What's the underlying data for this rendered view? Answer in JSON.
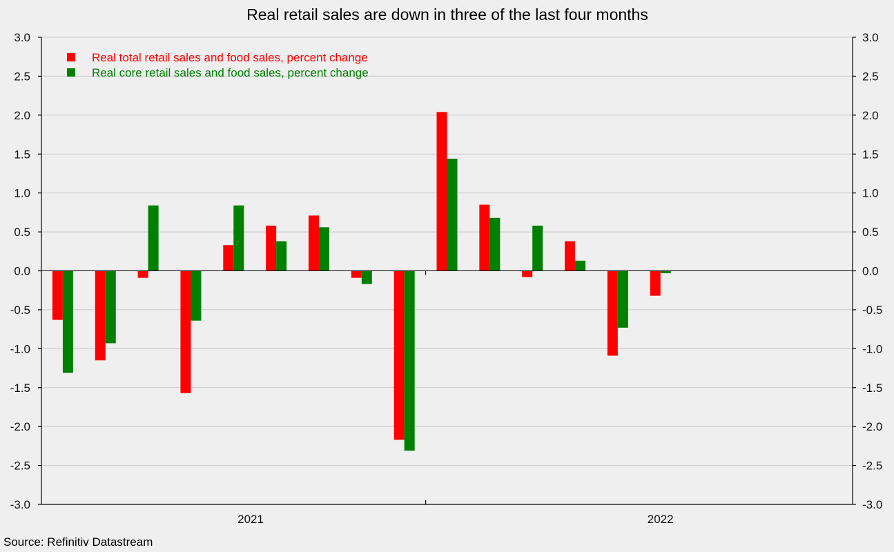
{
  "chart_data": {
    "type": "bar",
    "title": "Real retail sales are down in three of the last four months",
    "source": "Source: Refinitiv Datastream",
    "ylim": [
      -3.0,
      3.0
    ],
    "yticks": [
      "3.0",
      "2.5",
      "2.0",
      "1.5",
      "1.0",
      "0.5",
      "0.0",
      "-0.5",
      "-1.0",
      "-1.5",
      "-2.0",
      "-2.5",
      "-3.0"
    ],
    "ytick_values": [
      3.0,
      2.5,
      2.0,
      1.5,
      1.0,
      0.5,
      0.0,
      -0.5,
      -1.0,
      -1.5,
      -2.0,
      -2.5,
      -3.0
    ],
    "grid": true,
    "legend_position": "top-left",
    "year_labels": [
      "2021",
      "2022"
    ],
    "periods": 19,
    "series": [
      {
        "name": "Real total retail sales and food sales, percent change",
        "color": "#ff0000",
        "values": [
          -0.63,
          -1.15,
          -0.09,
          -1.57,
          0.33,
          0.58,
          0.71,
          -0.09,
          -2.17,
          2.04,
          0.85,
          -0.08,
          0.38,
          -1.09,
          -0.32,
          null,
          null,
          null,
          null
        ]
      },
      {
        "name": "Real core retail sales and food sales, percent change",
        "color": "#008000",
        "values": [
          -1.31,
          -0.93,
          0.84,
          -0.64,
          0.84,
          0.38,
          0.56,
          -0.17,
          -2.31,
          1.44,
          0.68,
          0.58,
          0.13,
          -0.73,
          -0.03,
          null,
          null,
          null,
          null
        ]
      }
    ]
  }
}
